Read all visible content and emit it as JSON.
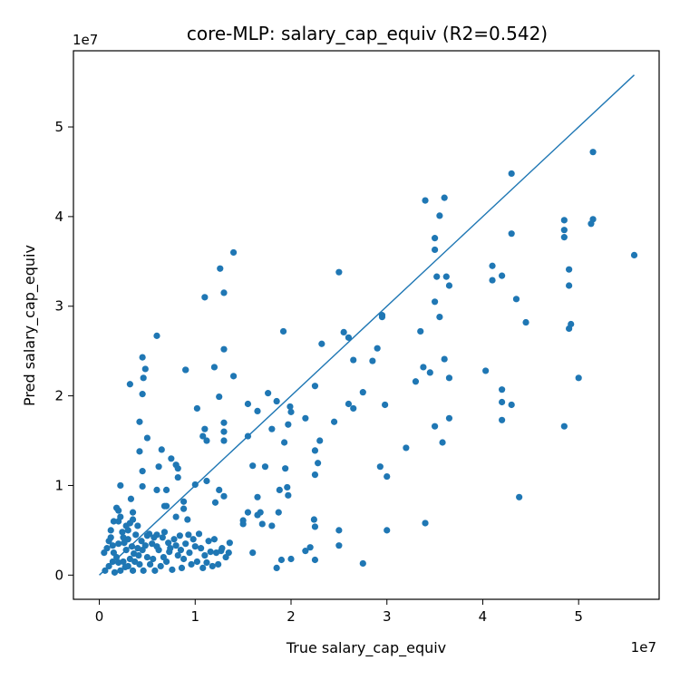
{
  "chart_data": {
    "type": "scatter",
    "title": "core-MLP: salary_cap_equiv (R2=0.542)",
    "xlabel": "True salary_cap_equiv",
    "ylabel": "Pred salary_cap_equiv",
    "x_offset_label": "1e7",
    "y_offset_label": "1e7",
    "xlim": [
      -0.27,
      5.84
    ],
    "ylim": [
      -0.27,
      5.85
    ],
    "xticks": [
      0,
      1,
      2,
      3,
      4,
      5
    ],
    "yticks": [
      0,
      1,
      2,
      3,
      4,
      5
    ],
    "grid": false,
    "marker_color": "#1f77b4",
    "reference_line": {
      "x": [
        0.0,
        5.58
      ],
      "y": [
        0.0,
        5.58
      ],
      "color": "#1f77b4"
    },
    "points": [
      [
        0.8,
        1.23
      ],
      [
        4.1,
        3.45
      ],
      [
        1.1,
        3.1
      ],
      [
        1.26,
        3.42
      ],
      [
        1.3,
        3.15
      ],
      [
        1.4,
        3.6
      ],
      [
        0.6,
        2.67
      ],
      [
        0.45,
        2.43
      ],
      [
        0.48,
        2.3
      ],
      [
        0.46,
        2.2
      ],
      [
        0.32,
        2.13
      ],
      [
        0.45,
        2.02
      ],
      [
        0.9,
        2.29
      ],
      [
        0.9,
        2.29
      ],
      [
        1.2,
        2.32
      ],
      [
        1.25,
        1.99
      ],
      [
        1.3,
        2.52
      ],
      [
        1.4,
        2.22
      ],
      [
        1.02,
        1.86
      ],
      [
        1.1,
        1.63
      ],
      [
        1.08,
        1.55
      ],
      [
        1.12,
        1.5
      ],
      [
        1.3,
        1.7
      ],
      [
        1.3,
        1.6
      ],
      [
        1.3,
        1.5
      ],
      [
        0.42,
        1.71
      ],
      [
        0.42,
        1.38
      ],
      [
        0.5,
        1.53
      ],
      [
        0.65,
        1.4
      ],
      [
        0.75,
        1.3
      ],
      [
        0.45,
        1.16
      ],
      [
        0.62,
        1.21
      ],
      [
        0.82,
        1.09
      ],
      [
        0.82,
        1.19
      ],
      [
        1.0,
        1.01
      ],
      [
        1.12,
        1.05
      ],
      [
        0.6,
        0.95
      ],
      [
        0.7,
        0.95
      ],
      [
        1.25,
        0.95
      ],
      [
        1.3,
        0.88
      ],
      [
        1.21,
        0.81
      ],
      [
        0.45,
        0.99
      ],
      [
        0.33,
        0.85
      ],
      [
        0.22,
        1.0
      ],
      [
        0.7,
        0.77
      ],
      [
        0.68,
        0.77
      ],
      [
        0.88,
        0.82
      ],
      [
        0.88,
        0.74
      ],
      [
        0.8,
        0.65
      ],
      [
        0.92,
        0.62
      ],
      [
        0.6,
        0.45
      ],
      [
        0.5,
        0.44
      ],
      [
        0.15,
        0.6
      ],
      [
        0.35,
        0.62
      ],
      [
        0.2,
        0.72
      ],
      [
        1.55,
        1.91
      ],
      [
        1.55,
        1.55
      ],
      [
        1.65,
        1.83
      ],
      [
        1.8,
        1.63
      ],
      [
        1.76,
        2.03
      ],
      [
        1.85,
        1.94
      ],
      [
        1.92,
        2.72
      ],
      [
        1.99,
        1.88
      ],
      [
        2.0,
        1.82
      ],
      [
        1.97,
        1.68
      ],
      [
        1.93,
        1.48
      ],
      [
        1.94,
        1.19
      ],
      [
        1.96,
        0.98
      ],
      [
        1.88,
        0.95
      ],
      [
        1.97,
        0.89
      ],
      [
        2.32,
        2.58
      ],
      [
        2.25,
        2.11
      ],
      [
        2.15,
        1.75
      ],
      [
        2.3,
        1.5
      ],
      [
        2.25,
        1.39
      ],
      [
        2.28,
        1.25
      ],
      [
        2.25,
        1.12
      ],
      [
        2.45,
        1.71
      ],
      [
        1.73,
        1.21
      ],
      [
        1.6,
        1.22
      ],
      [
        1.65,
        0.87
      ],
      [
        1.65,
        0.67
      ],
      [
        1.7,
        0.57
      ],
      [
        1.68,
        0.7
      ],
      [
        1.55,
        0.7
      ],
      [
        1.5,
        0.61
      ],
      [
        1.5,
        0.57
      ],
      [
        1.8,
        0.55
      ],
      [
        1.87,
        0.7
      ],
      [
        1.85,
        0.08
      ],
      [
        1.9,
        0.17
      ],
      [
        2.0,
        0.18
      ],
      [
        2.15,
        0.27
      ],
      [
        2.2,
        0.31
      ],
      [
        2.25,
        0.17
      ],
      [
        2.24,
        0.62
      ],
      [
        2.25,
        0.54
      ],
      [
        1.6,
        0.25
      ],
      [
        1.35,
        0.25
      ],
      [
        1.27,
        0.27
      ],
      [
        2.5,
        3.38
      ],
      [
        2.55,
        2.71
      ],
      [
        2.6,
        2.65
      ],
      [
        2.65,
        2.4
      ],
      [
        2.6,
        1.91
      ],
      [
        2.65,
        1.86
      ],
      [
        2.75,
        2.04
      ],
      [
        2.9,
        2.53
      ],
      [
        2.95,
        2.9
      ],
      [
        2.95,
        2.88
      ],
      [
        2.85,
        2.39
      ],
      [
        2.98,
        1.9
      ],
      [
        3.0,
        1.1
      ],
      [
        2.93,
        1.21
      ],
      [
        2.5,
        0.5
      ],
      [
        2.5,
        0.33
      ],
      [
        2.75,
        0.13
      ],
      [
        3.0,
        0.5
      ],
      [
        3.2,
        1.42
      ],
      [
        3.3,
        2.16
      ],
      [
        3.35,
        2.72
      ],
      [
        3.38,
        2.32
      ],
      [
        3.45,
        2.26
      ],
      [
        3.4,
        4.18
      ],
      [
        3.6,
        4.21
      ],
      [
        3.5,
        3.76
      ],
      [
        3.55,
        4.01
      ],
      [
        3.5,
        3.63
      ],
      [
        3.52,
        3.33
      ],
      [
        3.5,
        3.05
      ],
      [
        3.55,
        2.88
      ],
      [
        3.62,
        3.33
      ],
      [
        3.65,
        3.23
      ],
      [
        3.6,
        2.41
      ],
      [
        3.65,
        2.2
      ],
      [
        3.65,
        1.75
      ],
      [
        3.5,
        1.66
      ],
      [
        3.58,
        1.48
      ],
      [
        3.4,
        0.58
      ],
      [
        4.3,
        4.48
      ],
      [
        4.3,
        3.81
      ],
      [
        4.1,
        3.29
      ],
      [
        4.2,
        3.34
      ],
      [
        4.35,
        3.08
      ],
      [
        4.45,
        2.82
      ],
      [
        4.03,
        2.28
      ],
      [
        4.2,
        2.07
      ],
      [
        4.2,
        1.93
      ],
      [
        4.3,
        1.9
      ],
      [
        4.2,
        1.73
      ],
      [
        4.38,
        0.87
      ],
      [
        4.85,
        3.96
      ],
      [
        4.85,
        3.85
      ],
      [
        4.85,
        3.77
      ],
      [
        4.9,
        3.41
      ],
      [
        4.9,
        3.23
      ],
      [
        4.92,
        2.8
      ],
      [
        4.9,
        2.75
      ],
      [
        5.0,
        2.2
      ],
      [
        4.85,
        1.66
      ],
      [
        5.15,
        4.72
      ],
      [
        5.15,
        3.97
      ],
      [
        5.13,
        3.92
      ],
      [
        5.58,
        3.57
      ],
      [
        0.1,
        0.1
      ],
      [
        0.15,
        0.25
      ],
      [
        0.2,
        0.35
      ],
      [
        0.25,
        0.15
      ],
      [
        0.3,
        0.4
      ],
      [
        0.35,
        0.05
      ],
      [
        0.4,
        0.3
      ],
      [
        0.12,
        0.42
      ],
      [
        0.18,
        0.2
      ],
      [
        0.22,
        0.05
      ],
      [
        0.28,
        0.28
      ],
      [
        0.32,
        0.18
      ],
      [
        0.38,
        0.45
      ],
      [
        0.42,
        0.12
      ],
      [
        0.48,
        0.33
      ],
      [
        0.08,
        0.3
      ],
      [
        0.14,
        0.15
      ],
      [
        0.24,
        0.48
      ],
      [
        0.3,
        0.1
      ],
      [
        0.36,
        0.24
      ],
      [
        0.44,
        0.38
      ],
      [
        0.5,
        0.2
      ],
      [
        0.55,
        0.35
      ],
      [
        0.58,
        0.05
      ],
      [
        0.62,
        0.28
      ],
      [
        0.66,
        0.42
      ],
      [
        0.7,
        0.15
      ],
      [
        0.74,
        0.3
      ],
      [
        0.78,
        0.4
      ],
      [
        0.82,
        0.22
      ],
      [
        0.86,
        0.08
      ],
      [
        0.9,
        0.35
      ],
      [
        0.94,
        0.25
      ],
      [
        0.98,
        0.4
      ],
      [
        1.02,
        0.15
      ],
      [
        1.06,
        0.3
      ],
      [
        1.1,
        0.22
      ],
      [
        1.14,
        0.38
      ],
      [
        1.18,
        0.1
      ],
      [
        1.22,
        0.25
      ],
      [
        0.2,
        0.6
      ],
      [
        0.28,
        0.55
      ],
      [
        0.35,
        0.7
      ],
      [
        0.12,
        0.5
      ],
      [
        0.05,
        0.25
      ],
      [
        0.06,
        0.05
      ],
      [
        0.1,
        0.38
      ],
      [
        0.16,
        0.03
      ],
      [
        0.26,
        0.36
      ],
      [
        0.34,
        0.32
      ],
      [
        0.46,
        0.05
      ],
      [
        0.52,
        0.46
      ],
      [
        0.56,
        0.18
      ],
      [
        0.64,
        0.1
      ],
      [
        0.68,
        0.48
      ],
      [
        0.72,
        0.36
      ],
      [
        0.76,
        0.06
      ],
      [
        0.84,
        0.44
      ],
      [
        0.88,
        0.18
      ],
      [
        0.96,
        0.12
      ],
      [
        1.0,
        0.32
      ],
      [
        1.04,
        0.46
      ],
      [
        1.08,
        0.08
      ],
      [
        1.12,
        0.14
      ],
      [
        1.16,
        0.26
      ],
      [
        1.2,
        0.4
      ],
      [
        1.24,
        0.12
      ],
      [
        1.28,
        0.3
      ],
      [
        1.32,
        0.2
      ],
      [
        1.36,
        0.36
      ],
      [
        0.3,
        0.5
      ],
      [
        0.22,
        0.65
      ],
      [
        0.4,
        0.55
      ],
      [
        0.18,
        0.75
      ],
      [
        0.25,
        0.42
      ],
      [
        0.32,
        0.58
      ],
      [
        0.14,
        0.33
      ],
      [
        0.2,
        0.14
      ],
      [
        0.27,
        0.09
      ],
      [
        0.37,
        0.15
      ],
      [
        0.41,
        0.22
      ],
      [
        0.45,
        0.28
      ],
      [
        0.53,
        0.12
      ],
      [
        0.57,
        0.42
      ],
      [
        0.6,
        0.32
      ],
      [
        0.67,
        0.2
      ],
      [
        0.73,
        0.26
      ],
      [
        0.8,
        0.33
      ],
      [
        0.85,
        0.28
      ],
      [
        0.93,
        0.45
      ]
    ]
  }
}
